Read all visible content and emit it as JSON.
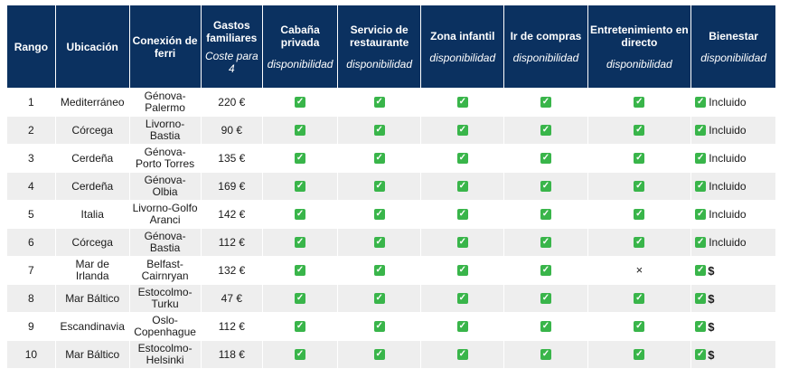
{
  "headers": [
    {
      "title": "Rango",
      "sub": ""
    },
    {
      "title": "Ubicación",
      "sub": ""
    },
    {
      "title": "Conexión de ferri",
      "sub": ""
    },
    {
      "title": "Gastos familiares",
      "sub": "Coste para 4"
    },
    {
      "title": "Cabaña privada",
      "sub": "disponibilidad"
    },
    {
      "title": "Servicio de restaurante",
      "sub": "disponibilidad"
    },
    {
      "title": "Zona infantil",
      "sub": "disponibilidad"
    },
    {
      "title": "Ir de compras",
      "sub": "disponibilidad"
    },
    {
      "title": "Entretenimiento en directo",
      "sub": "disponibilidad"
    },
    {
      "title": "Bienestar",
      "sub": "disponibilidad"
    }
  ],
  "rows": [
    {
      "rank": "1",
      "location": "Mediterráneo",
      "ferry": "Génova-Palermo",
      "cost": "220 €",
      "cabin": "check",
      "restaurant": "check",
      "kids": "check",
      "shopping": "check",
      "live": "check",
      "wellness_icon": "check",
      "wellness_text": "Incluido"
    },
    {
      "rank": "2",
      "location": "Córcega",
      "ferry": "Livorno-Bastia",
      "cost": "90 €",
      "cabin": "check",
      "restaurant": "check",
      "kids": "check",
      "shopping": "check",
      "live": "check",
      "wellness_icon": "check",
      "wellness_text": "Incluido"
    },
    {
      "rank": "3",
      "location": "Cerdeña",
      "ferry": "Génova-Porto Torres",
      "cost": "135 €",
      "cabin": "check",
      "restaurant": "check",
      "kids": "check",
      "shopping": "check",
      "live": "check",
      "wellness_icon": "check",
      "wellness_text": "Incluido"
    },
    {
      "rank": "4",
      "location": "Cerdeña",
      "ferry": "Génova-Olbia",
      "cost": "169 €",
      "cabin": "check",
      "restaurant": "check",
      "kids": "check",
      "shopping": "check",
      "live": "check",
      "wellness_icon": "check",
      "wellness_text": "Incluido"
    },
    {
      "rank": "5",
      "location": "Italia",
      "ferry": "Livorno-Golfo Aranci",
      "cost": "142 €",
      "cabin": "check",
      "restaurant": "check",
      "kids": "check",
      "shopping": "check",
      "live": "check",
      "wellness_icon": "check",
      "wellness_text": "Incluido"
    },
    {
      "rank": "6",
      "location": "Córcega",
      "ferry": "Génova-Bastia",
      "cost": "112 €",
      "cabin": "check",
      "restaurant": "check",
      "kids": "check",
      "shopping": "check",
      "live": "check",
      "wellness_icon": "check",
      "wellness_text": "Incluido"
    },
    {
      "rank": "7",
      "location": "Mar de Irlanda",
      "ferry": "Belfast-Cairnryan",
      "cost": "132 €",
      "cabin": "check",
      "restaurant": "check",
      "kids": "check",
      "shopping": "check",
      "live": "cross",
      "wellness_icon": "check",
      "wellness_text": "$"
    },
    {
      "rank": "8",
      "location": "Mar Báltico",
      "ferry": "Estocolmo-Turku",
      "cost": "47 €",
      "cabin": "check",
      "restaurant": "check",
      "kids": "check",
      "shopping": "check",
      "live": "check",
      "wellness_icon": "check",
      "wellness_text": "$"
    },
    {
      "rank": "9",
      "location": "Escandinavia",
      "ferry": "Oslo-Copenhague",
      "cost": "112 €",
      "cabin": "check",
      "restaurant": "check",
      "kids": "check",
      "shopping": "check",
      "live": "check",
      "wellness_icon": "check",
      "wellness_text": "$"
    },
    {
      "rank": "10",
      "location": "Mar Báltico",
      "ferry": "Estocolmo-Helsinki",
      "cost": "118 €",
      "cabin": "check",
      "restaurant": "check",
      "kids": "check",
      "shopping": "check",
      "live": "check",
      "wellness_icon": "check",
      "wellness_text": "$"
    }
  ],
  "symbols": {
    "check": "✓",
    "cross": "×"
  }
}
